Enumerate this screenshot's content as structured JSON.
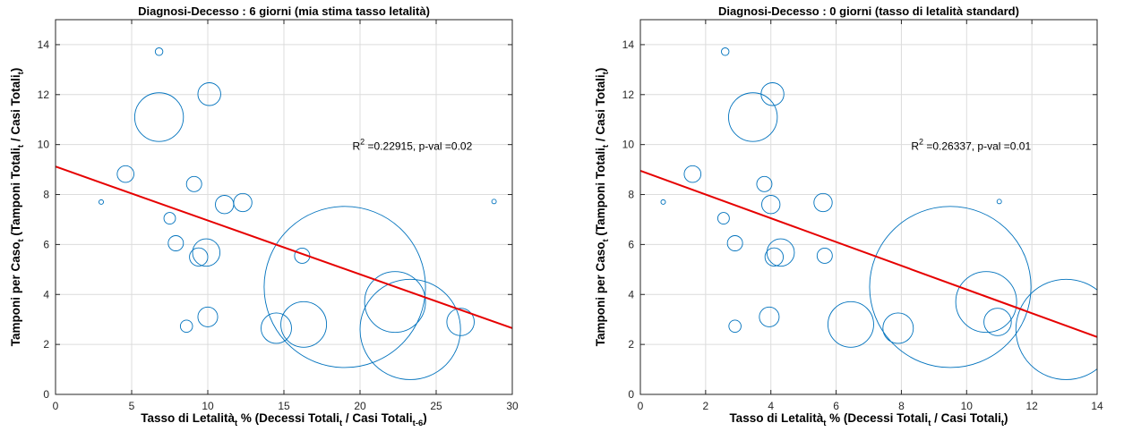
{
  "chart_data": [
    {
      "type": "scatter",
      "title": "Diagnosi-Decesso : 6 giorni (mia stima tasso letalità)",
      "xlabel": {
        "main": "Tasso di Letalità",
        "sub1": "t",
        "mid": " % (Decessi Totali",
        "sub2": "t",
        "mid2": " / Casi Totali",
        "sub3": "t-6",
        "end": ")"
      },
      "ylabel": {
        "main": "Tamponi per Caso",
        "sub1": "t",
        "mid": " (Tamponi Totali",
        "sub2": "t",
        "mid2": " / Casi Totali",
        "sub3": "t",
        "end": ")"
      },
      "xlim": [
        0,
        30
      ],
      "ylim": [
        0,
        15
      ],
      "xticks": [
        "0",
        "5",
        "10",
        "15",
        "20",
        "25",
        "30"
      ],
      "yticks": [
        "0",
        "2",
        "4",
        "6",
        "8",
        "10",
        "12",
        "14"
      ],
      "grid": true,
      "annotation": {
        "r2_label": "R",
        "r2_sup": "2",
        "text": " =0.22915, p-val =0.02",
        "x": 19.5,
        "y": 9.8
      },
      "fit_line": {
        "x": [
          0,
          30
        ],
        "y": [
          9.12,
          2.65
        ],
        "color": "#e60000"
      },
      "marker_color": "#0072bd",
      "points": [
        {
          "x": 6.8,
          "y": 13.72,
          "r": 0.25
        },
        {
          "x": 10.1,
          "y": 12.02,
          "r": 0.75
        },
        {
          "x": 6.8,
          "y": 11.1,
          "r": 1.6
        },
        {
          "x": 4.6,
          "y": 8.82,
          "r": 0.55
        },
        {
          "x": 9.1,
          "y": 8.42,
          "r": 0.5
        },
        {
          "x": 3.0,
          "y": 7.7,
          "r": 0.15
        },
        {
          "x": 11.1,
          "y": 7.6,
          "r": 0.6
        },
        {
          "x": 12.3,
          "y": 7.68,
          "r": 0.6
        },
        {
          "x": 28.8,
          "y": 7.72,
          "r": 0.12
        },
        {
          "x": 7.5,
          "y": 7.05,
          "r": 0.38
        },
        {
          "x": 7.9,
          "y": 6.05,
          "r": 0.5
        },
        {
          "x": 9.9,
          "y": 5.68,
          "r": 0.9
        },
        {
          "x": 9.4,
          "y": 5.5,
          "r": 0.6
        },
        {
          "x": 16.2,
          "y": 5.55,
          "r": 0.5
        },
        {
          "x": 19.0,
          "y": 4.3,
          "r": 5.3
        },
        {
          "x": 22.3,
          "y": 3.7,
          "r": 2.0
        },
        {
          "x": 23.3,
          "y": 2.6,
          "r": 3.3
        },
        {
          "x": 26.6,
          "y": 2.9,
          "r": 0.9
        },
        {
          "x": 10.0,
          "y": 3.1,
          "r": 0.65
        },
        {
          "x": 8.6,
          "y": 2.73,
          "r": 0.4
        },
        {
          "x": 14.5,
          "y": 2.65,
          "r": 1.0
        },
        {
          "x": 16.3,
          "y": 2.8,
          "r": 1.5
        }
      ]
    },
    {
      "type": "scatter",
      "title": "Diagnosi-Decesso : 0 giorni (tasso di letalità standard)",
      "xlabel": {
        "main": "Tasso di Letalità",
        "sub1": "t",
        "mid": " % (Decessi Totali",
        "sub2": "t",
        "mid2": " / Casi Totali",
        "sub3": "t",
        "end": ")"
      },
      "ylabel": {
        "main": "Tamponi per Caso",
        "sub1": "t",
        "mid": " (Tamponi Totali",
        "sub2": "t",
        "mid2": " / Casi Totali",
        "sub3": "t",
        "end": ")"
      },
      "xlim": [
        0,
        14
      ],
      "ylim": [
        0,
        15
      ],
      "xticks": [
        "0",
        "2",
        "4",
        "6",
        "8",
        "10",
        "12",
        "14"
      ],
      "yticks": [
        "0",
        "2",
        "4",
        "6",
        "8",
        "10",
        "12",
        "14"
      ],
      "grid": true,
      "annotation": {
        "r2_label": "R",
        "r2_sup": "2",
        "text": " =0.26337, p-val =0.01",
        "x": 8.3,
        "y": 9.8
      },
      "fit_line": {
        "x": [
          0,
          14
        ],
        "y": [
          8.95,
          2.3
        ],
        "color": "#e60000"
      },
      "marker_color": "#0072bd",
      "points": [
        {
          "x": 2.6,
          "y": 13.72,
          "r": 0.25
        },
        {
          "x": 4.05,
          "y": 12.02,
          "r": 0.75
        },
        {
          "x": 3.45,
          "y": 11.1,
          "r": 1.6
        },
        {
          "x": 1.6,
          "y": 8.82,
          "r": 0.55
        },
        {
          "x": 3.8,
          "y": 8.42,
          "r": 0.5
        },
        {
          "x": 0.7,
          "y": 7.7,
          "r": 0.15
        },
        {
          "x": 4.0,
          "y": 7.6,
          "r": 0.6
        },
        {
          "x": 5.6,
          "y": 7.68,
          "r": 0.6
        },
        {
          "x": 11.0,
          "y": 7.72,
          "r": 0.12
        },
        {
          "x": 2.55,
          "y": 7.05,
          "r": 0.38
        },
        {
          "x": 2.9,
          "y": 6.05,
          "r": 0.5
        },
        {
          "x": 4.3,
          "y": 5.68,
          "r": 0.9
        },
        {
          "x": 4.1,
          "y": 5.5,
          "r": 0.6
        },
        {
          "x": 5.65,
          "y": 5.55,
          "r": 0.5
        },
        {
          "x": 9.5,
          "y": 4.3,
          "r": 5.3
        },
        {
          "x": 10.6,
          "y": 3.7,
          "r": 2.0
        },
        {
          "x": 13.05,
          "y": 2.6,
          "r": 3.3
        },
        {
          "x": 10.95,
          "y": 2.9,
          "r": 0.9
        },
        {
          "x": 3.95,
          "y": 3.1,
          "r": 0.65
        },
        {
          "x": 2.9,
          "y": 2.73,
          "r": 0.4
        },
        {
          "x": 6.45,
          "y": 2.8,
          "r": 1.5
        },
        {
          "x": 7.9,
          "y": 2.65,
          "r": 1.0
        }
      ]
    }
  ]
}
